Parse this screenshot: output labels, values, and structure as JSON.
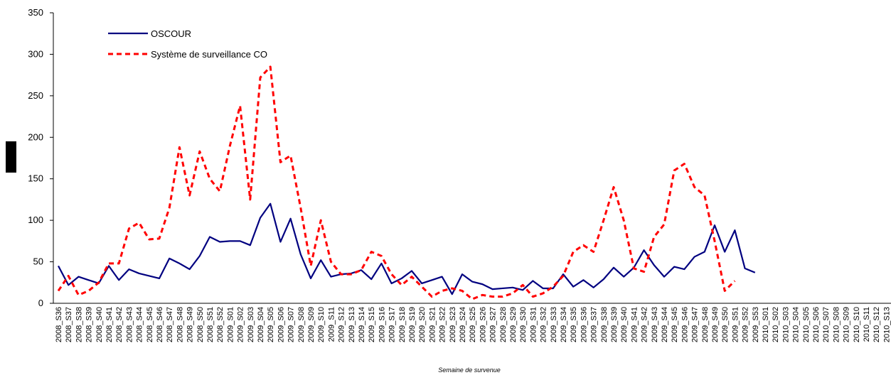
{
  "chart_data": {
    "type": "line",
    "x_label": "Semaine de survenue",
    "categories": [
      "2008_S36",
      "2008_S37",
      "2008_S38",
      "2008_S39",
      "2008_S40",
      "2008_S41",
      "2008_S42",
      "2008_S43",
      "2008_S44",
      "2008_S45",
      "2008_S46",
      "2008_S47",
      "2008_S48",
      "2008_S49",
      "2008_S50",
      "2008_S51",
      "2008_S52",
      "2009_S01",
      "2009_S02",
      "2009_S03",
      "2009_S04",
      "2009_S05",
      "2009_S06",
      "2009_S07",
      "2009_S08",
      "2009_S09",
      "2009_S10",
      "2009_S11",
      "2009_S12",
      "2009_S13",
      "2009_S14",
      "2009_S15",
      "2009_S16",
      "2009_S17",
      "2009_S18",
      "2009_S19",
      "2009_S20",
      "2009_S21",
      "2009_S22",
      "2009_S23",
      "2009_S24",
      "2009_S25",
      "2009_S26",
      "2009_S27",
      "2009_S28",
      "2009_S29",
      "2009_S30",
      "2009_S31",
      "2009_S32",
      "2009_S33",
      "2009_S34",
      "2009_S35",
      "2009_S36",
      "2009_S37",
      "2009_S38",
      "2009_S39",
      "2009_S40",
      "2009_S41",
      "2009_S42",
      "2009_S43",
      "2009_S44",
      "2009_S45",
      "2009_S46",
      "2009_S47",
      "2009_S48",
      "2009_S49",
      "2009_S50",
      "2009_S51",
      "2009_S52",
      "2009_S53",
      "2010_S01",
      "2010_S02",
      "2010_S03",
      "2010_S04",
      "2010_S05",
      "2010_S06",
      "2010_S07",
      "2010_S08",
      "2010_S09",
      "2010_S10",
      "2010_S11",
      "2010_S12",
      "2010_S13"
    ],
    "series": [
      {
        "name": "OSCOUR",
        "color": "#000080",
        "dashed": false,
        "values": [
          45,
          22,
          32,
          28,
          24,
          45,
          28,
          41,
          36,
          33,
          30,
          54,
          48,
          41,
          57,
          80,
          74,
          75,
          75,
          70,
          103,
          120,
          74,
          102,
          59,
          30,
          52,
          32,
          35,
          36,
          40,
          29,
          48,
          24,
          30,
          39,
          24,
          28,
          32,
          11,
          35,
          26,
          23,
          17,
          18,
          19,
          16,
          27,
          18,
          18,
          35,
          20,
          28,
          19,
          29,
          43,
          32,
          43,
          64,
          46,
          32,
          44,
          41,
          56,
          62,
          94,
          62,
          88,
          42,
          37,
          null,
          null,
          null,
          null,
          null,
          null,
          null,
          null,
          null,
          null,
          null,
          null,
          null
        ]
      },
      {
        "name": "Système de surveillance CO",
        "color": "#ff0000",
        "dashed": true,
        "values": [
          15,
          33,
          10,
          15,
          25,
          48,
          48,
          90,
          97,
          77,
          78,
          115,
          188,
          130,
          183,
          150,
          135,
          190,
          238,
          125,
          272,
          285,
          170,
          178,
          115,
          45,
          100,
          50,
          35,
          35,
          40,
          62,
          57,
          35,
          22,
          32,
          20,
          8,
          15,
          18,
          15,
          5,
          10,
          8,
          8,
          12,
          22,
          8,
          12,
          20,
          33,
          62,
          70,
          62,
          100,
          140,
          100,
          42,
          38,
          80,
          95,
          160,
          168,
          140,
          130,
          75,
          15,
          27,
          null,
          null,
          null,
          null,
          null,
          null,
          null,
          null,
          null,
          null,
          null,
          null,
          null,
          null,
          null
        ]
      }
    ],
    "ylim": [
      0,
      350
    ],
    "yticks": [
      0,
      50,
      100,
      150,
      200,
      250,
      300,
      350
    ],
    "grid": false
  }
}
